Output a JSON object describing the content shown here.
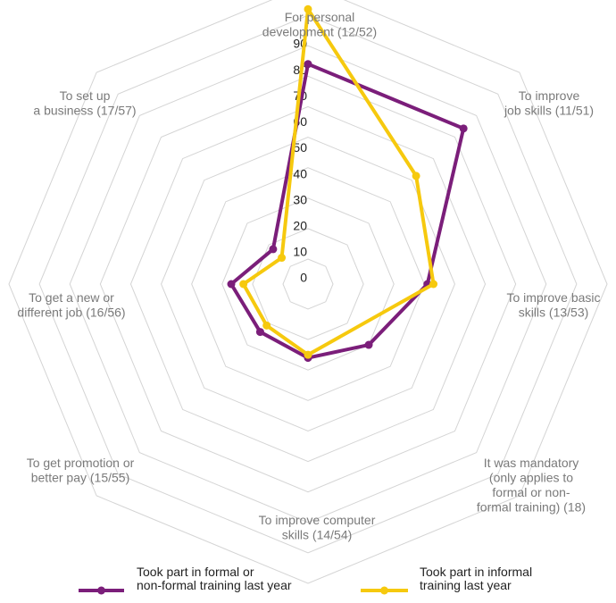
{
  "chart_data": {
    "type": "radar",
    "categories": [
      [
        "For personal",
        "development (12/52)"
      ],
      [
        "To improve",
        "job skills (11/51)"
      ],
      [
        "To improve basic",
        "skills (13/53)"
      ],
      [
        "It was mandatory",
        "(only applies to",
        "formal or non-",
        "formal training) (18)"
      ],
      [
        "To improve computer",
        "skills (14/54)"
      ],
      [
        "To get promotion or",
        "better pay (15/55)"
      ],
      [
        "To get a new or",
        "different job (16/56)"
      ],
      [
        "To set up",
        "a business (17/57)"
      ]
    ],
    "rlim": [
      0,
      90
    ],
    "ticks": [
      0,
      10,
      20,
      30,
      40,
      50,
      60,
      70,
      80,
      90
    ],
    "series": [
      {
        "name": [
          "Took part in formal or",
          "non-formal training last year"
        ],
        "color": "#7b1e7a",
        "values": [
          64,
          64,
          31,
          20,
          16,
          14,
          17,
          8
        ]
      },
      {
        "name": [
          "Took part in informal",
          "training last year"
        ],
        "color": "#f6c90e",
        "values": [
          82,
          42,
          33,
          null,
          15,
          11,
          13,
          4
        ]
      }
    ],
    "legend_position": "bottom"
  }
}
